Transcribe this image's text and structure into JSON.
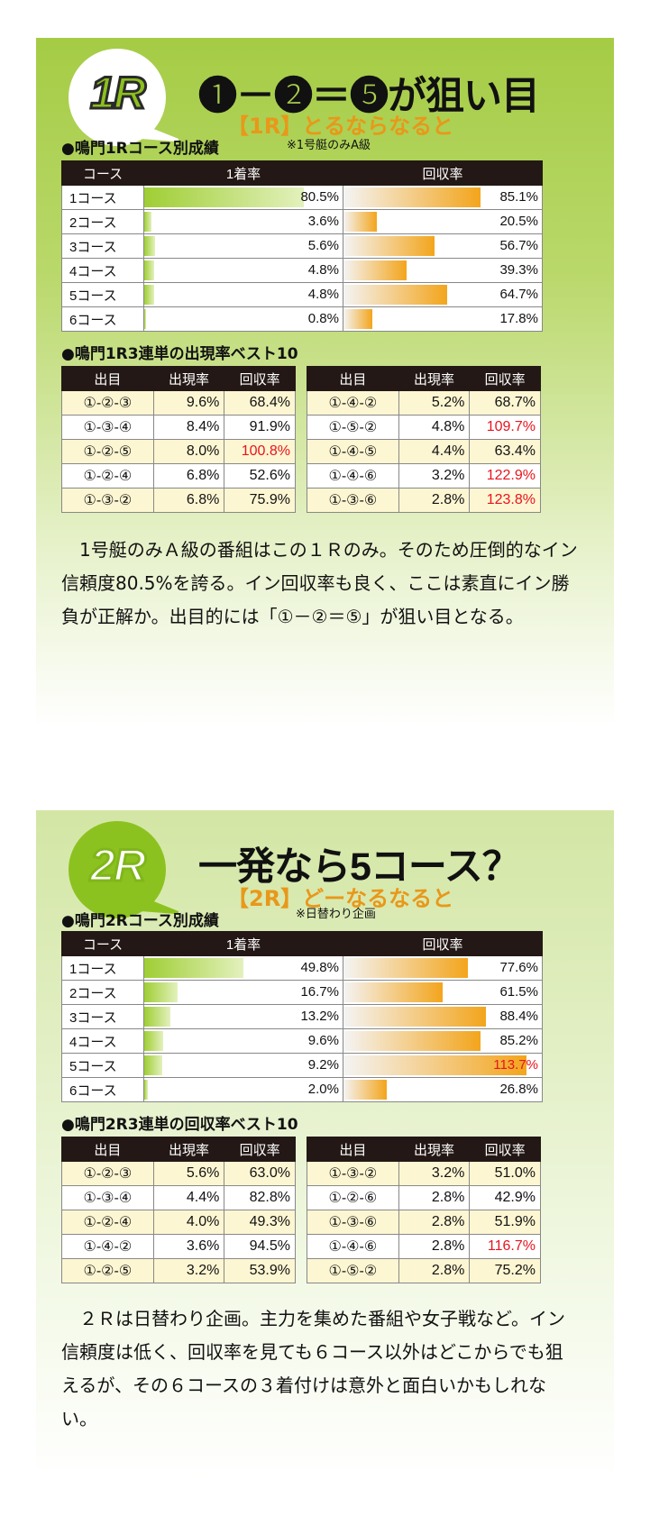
{
  "race1": {
    "badge": "1R",
    "headline": "❶－❷＝❺が狙い目",
    "subtitle": "【1R】とるならなると",
    "course_heading": "●鳴門1Rコース別成績",
    "note": "※1号艇のみA級",
    "course_headers": [
      "コース",
      "1着率",
      "回収率"
    ],
    "courses": [
      {
        "name": "1コース",
        "win": "80.5%",
        "win_pct": 80.5,
        "ret": "85.1%",
        "ret_pct": 85.1
      },
      {
        "name": "2コース",
        "win": "3.6%",
        "win_pct": 3.6,
        "ret": "20.5%",
        "ret_pct": 20.5
      },
      {
        "name": "3コース",
        "win": "5.6%",
        "win_pct": 5.6,
        "ret": "56.7%",
        "ret_pct": 56.7
      },
      {
        "name": "4コース",
        "win": "4.8%",
        "win_pct": 4.8,
        "ret": "39.3%",
        "ret_pct": 39.3
      },
      {
        "name": "5コース",
        "win": "4.8%",
        "win_pct": 4.8,
        "ret": "64.7%",
        "ret_pct": 64.7
      },
      {
        "name": "6コース",
        "win": "0.8%",
        "win_pct": 0.8,
        "ret": "17.8%",
        "ret_pct": 17.8
      }
    ],
    "combo_heading": "●鳴門1R3連単の出現率ベスト10",
    "combo_headers": [
      "出目",
      "出現率",
      "回収率"
    ],
    "combos_left": [
      {
        "combo": "①-②-③",
        "rate": "9.6%",
        "ret": "68.4%",
        "red": false
      },
      {
        "combo": "①-③-④",
        "rate": "8.4%",
        "ret": "91.9%",
        "red": false
      },
      {
        "combo": "①-②-⑤",
        "rate": "8.0%",
        "ret": "100.8%",
        "red": true
      },
      {
        "combo": "①-②-④",
        "rate": "6.8%",
        "ret": "52.6%",
        "red": false
      },
      {
        "combo": "①-③-②",
        "rate": "6.8%",
        "ret": "75.9%",
        "red": false
      }
    ],
    "combos_right": [
      {
        "combo": "①-④-②",
        "rate": "5.2%",
        "ret": "68.7%",
        "red": false
      },
      {
        "combo": "①-⑤-②",
        "rate": "4.8%",
        "ret": "109.7%",
        "red": true
      },
      {
        "combo": "①-④-⑤",
        "rate": "4.4%",
        "ret": "63.4%",
        "red": false
      },
      {
        "combo": "①-④-⑥",
        "rate": "3.2%",
        "ret": "122.9%",
        "red": true
      },
      {
        "combo": "①-③-⑥",
        "rate": "2.8%",
        "ret": "123.8%",
        "red": true
      }
    ],
    "paragraph": "1号艇のみＡ級の番組はこの１Ｒのみ。そのため圧倒的なイン信頼度80.5%を誇る。イン回収率も良く、ここは素直にイン勝負が正解か。出目的には「①－②＝⑤」が狙い目となる。"
  },
  "race2": {
    "badge": "2R",
    "headline": "一発なら5コース？",
    "subtitle": "【2R】どーなるなると",
    "course_heading": "●鳴門2Rコース別成績",
    "note": "※日替わり企画",
    "course_headers": [
      "コース",
      "1着率",
      "回収率"
    ],
    "courses": [
      {
        "name": "1コース",
        "win": "49.8%",
        "win_pct": 49.8,
        "ret": "77.6%",
        "ret_pct": 77.6,
        "red": false
      },
      {
        "name": "2コース",
        "win": "16.7%",
        "win_pct": 16.7,
        "ret": "61.5%",
        "ret_pct": 61.5,
        "red": false
      },
      {
        "name": "3コース",
        "win": "13.2%",
        "win_pct": 13.2,
        "ret": "88.4%",
        "ret_pct": 88.4,
        "red": false
      },
      {
        "name": "4コース",
        "win": "9.6%",
        "win_pct": 9.6,
        "ret": "85.2%",
        "ret_pct": 85.2,
        "red": false
      },
      {
        "name": "5コース",
        "win": "9.2%",
        "win_pct": 9.2,
        "ret": "113.7%",
        "ret_pct": 113.7,
        "red": true
      },
      {
        "name": "6コース",
        "win": "2.0%",
        "win_pct": 2.0,
        "ret": "26.8%",
        "ret_pct": 26.8,
        "red": false
      }
    ],
    "combo_heading": "●鳴門2R3連単の回収率ベスト10",
    "combo_headers": [
      "出目",
      "出現率",
      "回収率"
    ],
    "combos_left": [
      {
        "combo": "①-②-③",
        "rate": "5.6%",
        "ret": "63.0%",
        "red": false
      },
      {
        "combo": "①-③-④",
        "rate": "4.4%",
        "ret": "82.8%",
        "red": false
      },
      {
        "combo": "①-②-④",
        "rate": "4.0%",
        "ret": "49.3%",
        "red": false
      },
      {
        "combo": "①-④-②",
        "rate": "3.6%",
        "ret": "94.5%",
        "red": false
      },
      {
        "combo": "①-②-⑤",
        "rate": "3.2%",
        "ret": "53.9%",
        "red": false
      }
    ],
    "combos_right": [
      {
        "combo": "①-③-②",
        "rate": "3.2%",
        "ret": "51.0%",
        "red": false
      },
      {
        "combo": "①-②-⑥",
        "rate": "2.8%",
        "ret": "42.9%",
        "red": false
      },
      {
        "combo": "①-③-⑥",
        "rate": "2.8%",
        "ret": "51.9%",
        "red": false
      },
      {
        "combo": "①-④-⑥",
        "rate": "2.8%",
        "ret": "116.7%",
        "red": true
      },
      {
        "combo": "①-⑤-②",
        "rate": "2.8%",
        "ret": "75.2%",
        "red": false
      }
    ],
    "paragraph": "２Ｒは日替わり企画。主力を集めた番組や女子戦など。イン信頼度は低く、回収率を見ても６コース以外はどこからでも狙えるが、その６コースの３着付けは意外と面白いかもしれない。"
  }
}
